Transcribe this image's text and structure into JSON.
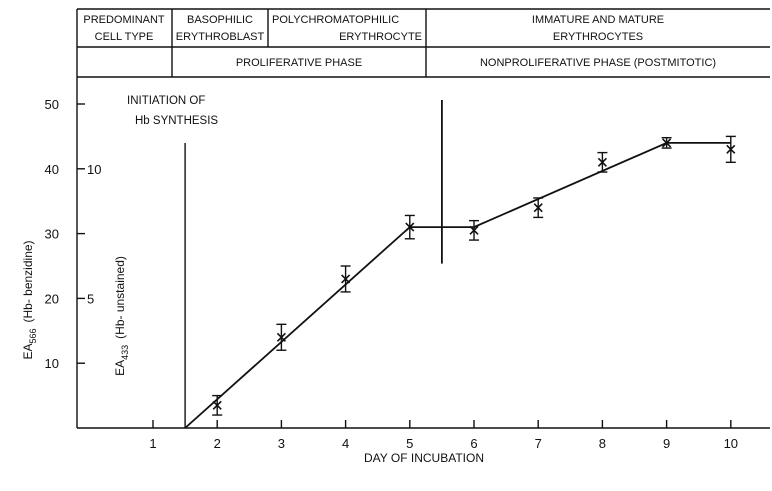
{
  "chart_data": {
    "type": "line",
    "header": {
      "row1": {
        "c1_l1": "PREDOMINANT",
        "c1_l2": "CELL TYPE",
        "c2_l1": "BASOPHILIC",
        "c2_l2": "ERYTHROBLAST",
        "c3_l1": "POLYCHROMATOPHILIC",
        "c3_l2": "ERYTHROCYTE",
        "c4_l1": "IMMATURE AND MATURE",
        "c4_l2": "ERYTHROCYTES"
      },
      "row2": {
        "proliferative": "PROLIFERATIVE PHASE",
        "nonproliferative": "NONPROLIFERATIVE PHASE (POSTMITOTIC)"
      }
    },
    "annotation": {
      "line1": "INITIATION OF",
      "line2": "Hb SYNTHESIS",
      "x": 1.5
    },
    "marker": {
      "x": 5.5,
      "y_from": 30,
      "y_to": 50
    },
    "xlabel": "DAY OF INCUBATION",
    "ylabel_left": {
      "main": "EA",
      "sub": "566",
      "rest": "(Hb- benzidine)"
    },
    "ylabel_inner": {
      "main": "EA",
      "sub": "433",
      "rest": "(Hb- unstained)"
    },
    "x_ticks": [
      "1",
      "2",
      "3",
      "4",
      "5",
      "6",
      "7",
      "8",
      "9",
      "10"
    ],
    "y_ticks": [
      "10",
      "20",
      "30",
      "40",
      "50"
    ],
    "y_ticks_inner": [
      {
        "label": "5",
        "at": 20
      },
      {
        "label": "10",
        "at": 40
      }
    ],
    "xlim": [
      0,
      10.9
    ],
    "ylim": [
      0,
      52
    ],
    "line": [
      {
        "x": 1.5,
        "y": 0
      },
      {
        "x": 5,
        "y": 31
      },
      {
        "x": 6,
        "y": 31
      },
      {
        "x": 9,
        "y": 44
      },
      {
        "x": 10,
        "y": 44
      }
    ],
    "series": [
      {
        "marker": "x",
        "points": [
          {
            "x": 2,
            "y": 3.5,
            "err": 1.5
          },
          {
            "x": 3,
            "y": 14,
            "err": 2
          },
          {
            "x": 4,
            "y": 23,
            "err": 2
          },
          {
            "x": 5,
            "y": 31,
            "err": 1.8
          },
          {
            "x": 6,
            "y": 30.5,
            "err": 1.5
          },
          {
            "x": 7,
            "y": 34,
            "err": 1.5
          },
          {
            "x": 8,
            "y": 41,
            "err": 1.5
          },
          {
            "x": 9,
            "y": 44,
            "err": 0.8
          },
          {
            "x": 10,
            "y": 43,
            "err": 2
          }
        ]
      }
    ]
  }
}
